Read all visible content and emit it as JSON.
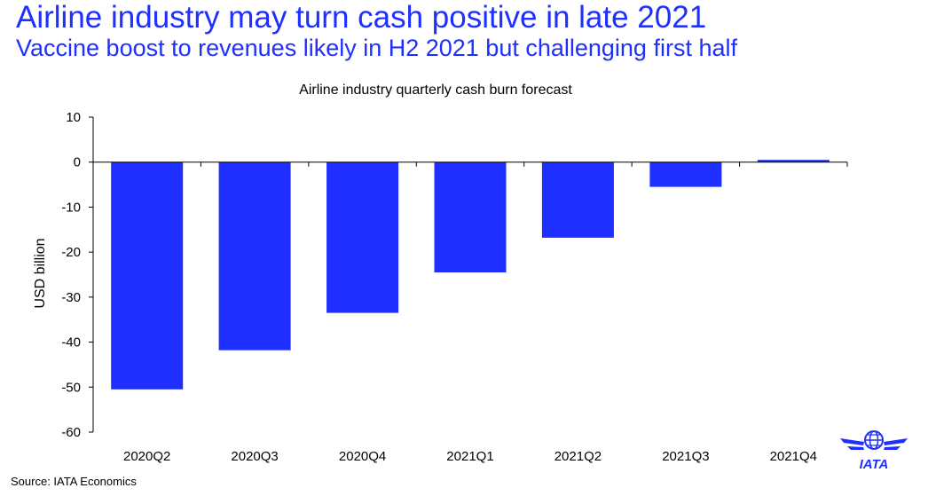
{
  "header": {
    "title": "Airline industry may turn cash positive in late 2021",
    "subtitle": "Vaccine boost to revenues likely in H2 2021 but challenging first half"
  },
  "source": "Source: IATA Economics",
  "logo": {
    "text": "IATA",
    "icon": "globe-wings-logo"
  },
  "colors": {
    "accent": "#1f2fff"
  },
  "chart_data": {
    "type": "bar",
    "title": "Airline industry quarterly cash burn forecast",
    "xlabel": "",
    "ylabel": "USD billion",
    "categories": [
      "2020Q2",
      "2020Q3",
      "2020Q4",
      "2021Q1",
      "2021Q2",
      "2021Q3",
      "2021Q4"
    ],
    "values": [
      -50.5,
      -41.8,
      -33.5,
      -24.5,
      -16.8,
      -5.5,
      0.5
    ],
    "ylim": [
      -60,
      10
    ],
    "yticks": [
      10,
      0,
      -10,
      -20,
      -30,
      -40,
      -50,
      -60
    ],
    "grid": false,
    "legend": "none"
  }
}
